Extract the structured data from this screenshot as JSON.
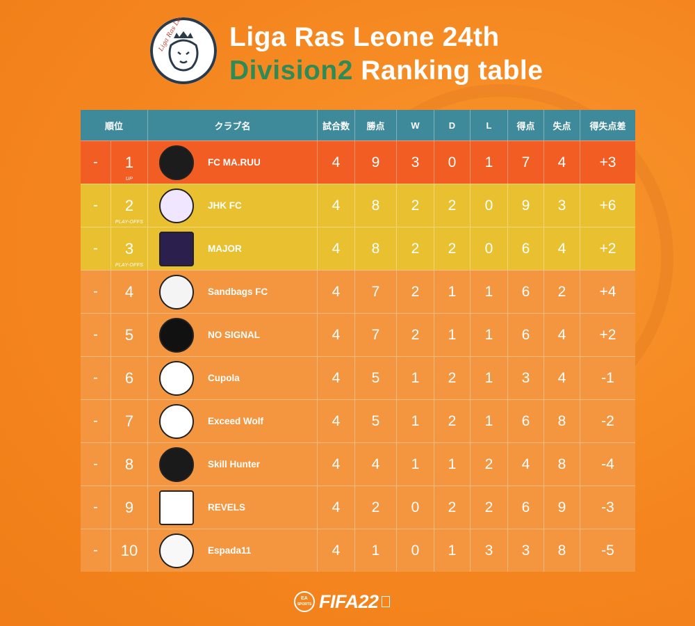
{
  "header": {
    "logo_text": "Liga Ras Leone",
    "title_line1": "Liga Ras Leone 24th",
    "title_green": "Division2",
    "title_rest": " Ranking table"
  },
  "table": {
    "columns": [
      "順位",
      "クラブ名",
      "試合数",
      "勝点",
      "W",
      "D",
      "L",
      "得点",
      "失点",
      "得失点差"
    ],
    "rows": [
      {
        "move": "-",
        "rank": "1",
        "sub": "UP",
        "club": "FC MA.RUU",
        "gp": "4",
        "pts": "9",
        "w": "3",
        "d": "0",
        "l": "1",
        "gf": "7",
        "ga": "4",
        "gd": "+3"
      },
      {
        "move": "-",
        "rank": "2",
        "sub": "PLAY-OFFS",
        "club": "JHK FC",
        "gp": "4",
        "pts": "8",
        "w": "2",
        "d": "2",
        "l": "0",
        "gf": "9",
        "ga": "3",
        "gd": "+6"
      },
      {
        "move": "-",
        "rank": "3",
        "sub": "PLAY-OFFS",
        "club": "MAJOR",
        "gp": "4",
        "pts": "8",
        "w": "2",
        "d": "2",
        "l": "0",
        "gf": "6",
        "ga": "4",
        "gd": "+2"
      },
      {
        "move": "-",
        "rank": "4",
        "sub": "",
        "club": "Sandbags FC",
        "gp": "4",
        "pts": "7",
        "w": "2",
        "d": "1",
        "l": "1",
        "gf": "6",
        "ga": "2",
        "gd": "+4"
      },
      {
        "move": "-",
        "rank": "5",
        "sub": "",
        "club": "NO SIGNAL",
        "gp": "4",
        "pts": "7",
        "w": "2",
        "d": "1",
        "l": "1",
        "gf": "6",
        "ga": "4",
        "gd": "+2"
      },
      {
        "move": "-",
        "rank": "6",
        "sub": "",
        "club": "Cupola",
        "gp": "4",
        "pts": "5",
        "w": "1",
        "d": "2",
        "l": "1",
        "gf": "3",
        "ga": "4",
        "gd": "-1"
      },
      {
        "move": "-",
        "rank": "7",
        "sub": "",
        "club": "Exceed Wolf",
        "gp": "4",
        "pts": "5",
        "w": "1",
        "d": "2",
        "l": "1",
        "gf": "6",
        "ga": "8",
        "gd": "-2"
      },
      {
        "move": "-",
        "rank": "8",
        "sub": "",
        "club": "Skill Hunter",
        "gp": "4",
        "pts": "4",
        "w": "1",
        "d": "1",
        "l": "2",
        "gf": "4",
        "ga": "8",
        "gd": "-4"
      },
      {
        "move": "-",
        "rank": "9",
        "sub": "",
        "club": "REVELS",
        "gp": "4",
        "pts": "2",
        "w": "0",
        "d": "2",
        "l": "2",
        "gf": "6",
        "ga": "9",
        "gd": "-3"
      },
      {
        "move": "-",
        "rank": "10",
        "sub": "",
        "club": "Espada11",
        "gp": "4",
        "pts": "1",
        "w": "0",
        "d": "1",
        "l": "3",
        "gf": "3",
        "ga": "8",
        "gd": "-5"
      }
    ]
  },
  "footer": {
    "ea_line1": "EA",
    "ea_line2": "SPORTS",
    "fifa": "FIFA22"
  },
  "colors": {
    "header_bg": "#3e8a9b",
    "row_up": "#f25d23",
    "row_playoff": "#e8c030",
    "row_normal": "#f49640",
    "title_accent": "#2e8b57"
  }
}
